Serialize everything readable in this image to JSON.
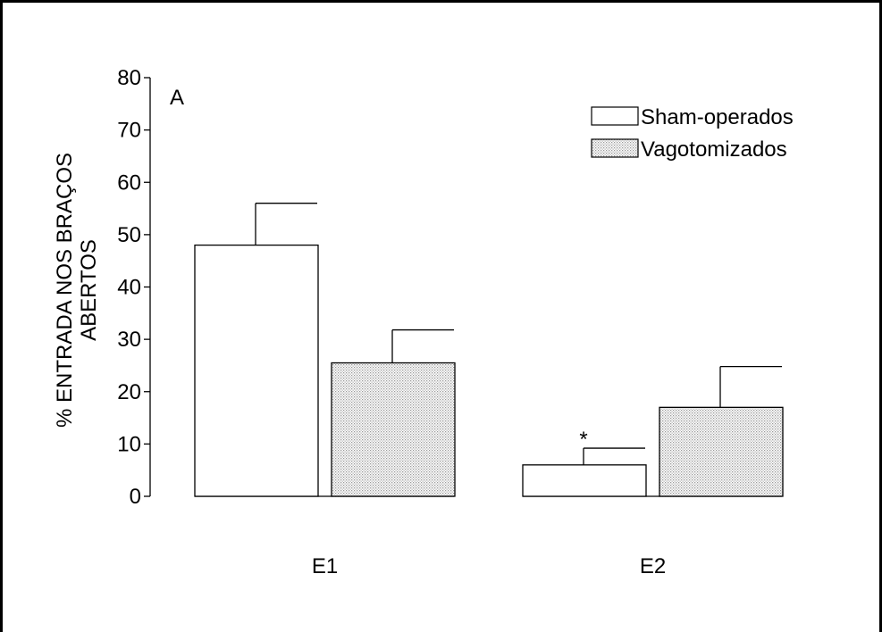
{
  "chart_data": {
    "type": "bar",
    "panel_label": "A",
    "ylabel_line1": "% ENTRADA NOS BRAÇOS",
    "ylabel_line2": "ABERTOS",
    "xlabel": "",
    "ylim": [
      0,
      80
    ],
    "yticks": [
      0,
      10,
      20,
      30,
      40,
      50,
      60,
      70,
      80
    ],
    "categories": [
      "E1",
      "E2"
    ],
    "series": [
      {
        "name": "Sham-operados",
        "fill": "#ffffff",
        "values": [
          48,
          6
        ],
        "errors": [
          8,
          3.2
        ]
      },
      {
        "name": "Vagotomizados",
        "fill": "dotted-gray",
        "values": [
          25.5,
          17
        ],
        "errors": [
          6.3,
          7.8
        ]
      }
    ],
    "significance": [
      {
        "category": "E2",
        "series": "Sham-operados",
        "marker": "*"
      }
    ],
    "legend_position": "top-right",
    "grid": false
  }
}
